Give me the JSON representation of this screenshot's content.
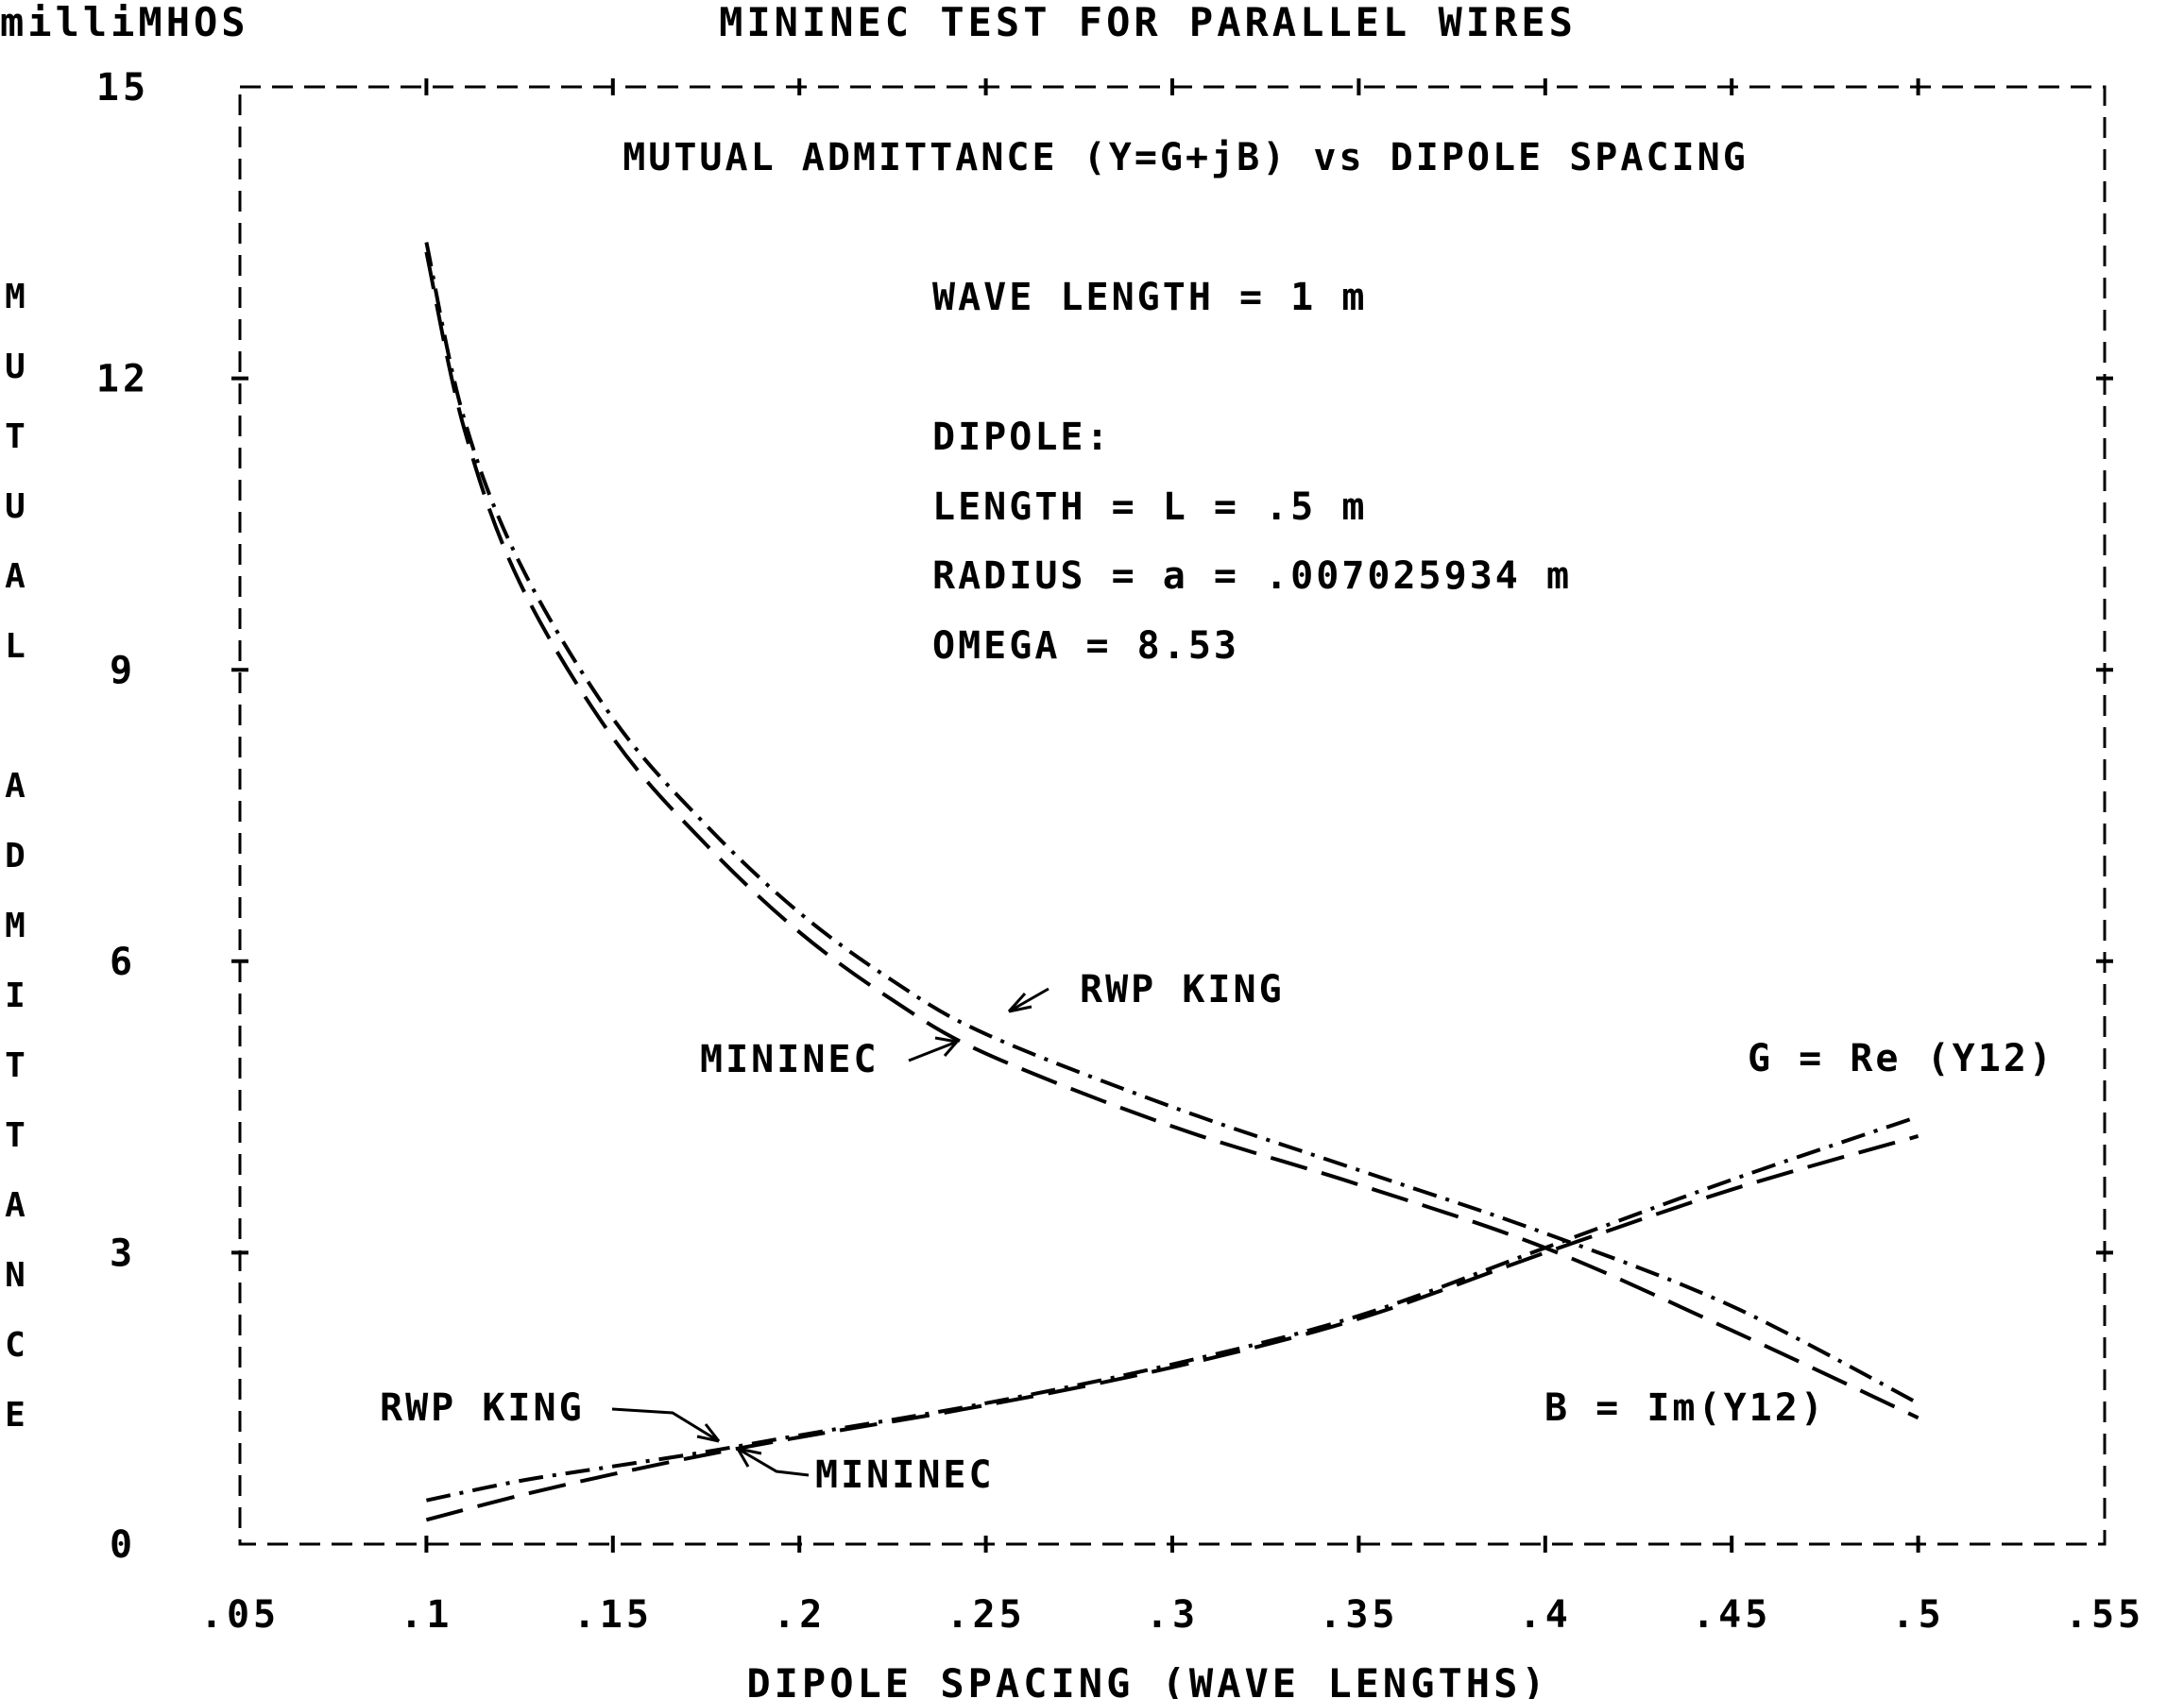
{
  "chart_data": {
    "type": "line",
    "title": "MININEC TEST FOR PARALLEL WIRES",
    "subtitle": "MUTUAL ADMITTANCE (Y=G+jB) vs DIPOLE SPACING",
    "y_units": "milliMHOS",
    "xlabel": "DIPOLE SPACING (WAVE LENGTHS)",
    "ylabel": "MUTUAL ADMITTANCE",
    "xlim": [
      0.05,
      0.55
    ],
    "ylim": [
      0,
      15
    ],
    "x_tick_labels": [
      ".05",
      ".1",
      ".15",
      ".2",
      ".25",
      ".3",
      ".35",
      ".4",
      ".45",
      ".5",
      ".55"
    ],
    "x_ticks": [
      0.05,
      0.1,
      0.15,
      0.2,
      0.25,
      0.3,
      0.35,
      0.4,
      0.45,
      0.5,
      0.55
    ],
    "y_tick_labels": [
      "0",
      "3",
      "6",
      "9",
      "12",
      "15"
    ],
    "y_ticks": [
      0,
      3,
      6,
      9,
      12,
      15
    ],
    "info_lines": [
      "WAVE LENGTH = 1 m",
      "DIPOLE:",
      "LENGTH = L = .5 m",
      "RADIUS = a = .007025934 m",
      "OMEGA = 8.53"
    ],
    "annotations": {
      "king_upper": "RWP KING",
      "mininec_upper": "MININEC",
      "g_label": "G = Re (Y12)",
      "b_label": "B = Im(Y12)",
      "king_lower": "RWP KING",
      "mininec_lower": "MININEC"
    },
    "series": [
      {
        "name": "RWP KING",
        "curve": "B = Im(Y12)",
        "style": "dash-dot",
        "x": [
          0.1,
          0.11,
          0.125,
          0.15,
          0.175,
          0.2,
          0.225,
          0.25,
          0.3,
          0.35,
          0.4,
          0.45,
          0.5
        ],
        "y": [
          13.4,
          11.6,
          10.1,
          8.5,
          7.4,
          6.5,
          5.8,
          5.25,
          4.5,
          3.85,
          3.2,
          2.45,
          1.45
        ]
      },
      {
        "name": "MININEC",
        "curve": "B = Im(Y12)",
        "style": "dashed",
        "x": [
          0.1,
          0.11,
          0.125,
          0.15,
          0.175,
          0.2,
          0.225,
          0.25,
          0.3,
          0.35,
          0.4,
          0.45,
          0.5
        ],
        "y": [
          13.3,
          11.5,
          9.9,
          8.3,
          7.2,
          6.3,
          5.6,
          5.05,
          4.3,
          3.7,
          3.05,
          2.2,
          1.3
        ]
      },
      {
        "name": "RWP KING",
        "curve": "G = Re (Y12)",
        "style": "dash-dot",
        "x": [
          0.1,
          0.125,
          0.15,
          0.175,
          0.2,
          0.25,
          0.3,
          0.35,
          0.4,
          0.45,
          0.5
        ],
        "y": [
          0.45,
          0.65,
          0.8,
          0.95,
          1.12,
          1.45,
          1.85,
          2.35,
          3.05,
          3.75,
          4.4
        ]
      },
      {
        "name": "MININEC",
        "curve": "G = Re (Y12)",
        "style": "dashed",
        "x": [
          0.1,
          0.125,
          0.15,
          0.175,
          0.2,
          0.25,
          0.3,
          0.35,
          0.4,
          0.45,
          0.5
        ],
        "y": [
          0.25,
          0.5,
          0.72,
          0.92,
          1.1,
          1.43,
          1.82,
          2.32,
          3.0,
          3.65,
          4.2
        ]
      }
    ],
    "grid": false,
    "legend": "none"
  }
}
